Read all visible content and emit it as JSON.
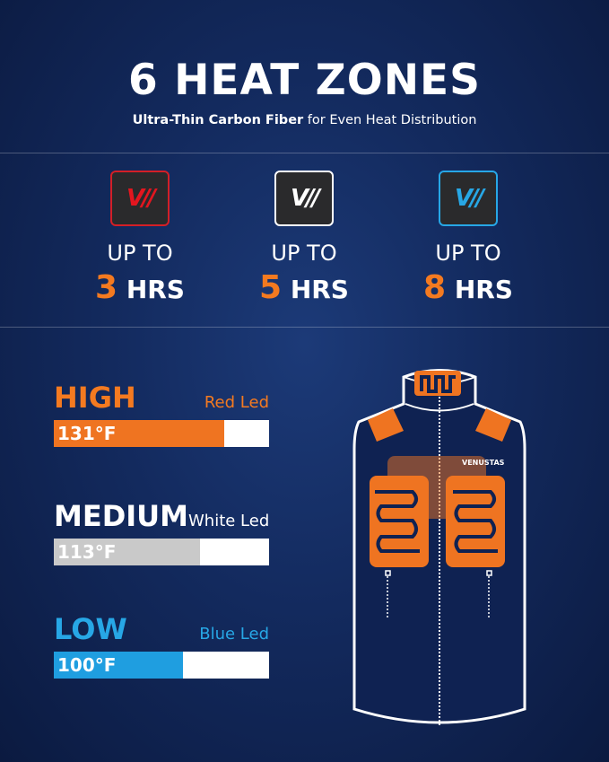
{
  "header": {
    "title": "6 HEAT ZONES",
    "subtitle_bold": "Ultra-Thin Carbon Fiber",
    "subtitle_rest": " for Even Heat Distribution"
  },
  "modes": [
    {
      "led_color": "#d41f26",
      "up_to": "UP TO",
      "hours": "3",
      "unit": "HRS",
      "icon": "venustas-logo-red"
    },
    {
      "led_color": "#ffffff",
      "up_to": "UP TO",
      "hours": "5",
      "unit": "HRS",
      "icon": "venustas-logo-white"
    },
    {
      "led_color": "#27a7e6",
      "up_to": "UP TO",
      "hours": "8",
      "unit": "HRS",
      "icon": "venustas-logo-blue"
    }
  ],
  "logo_text": "V//",
  "levels": [
    {
      "name": "HIGH",
      "name_color": "#f47a20",
      "led": "Red Led",
      "led_color": "#f47a20",
      "temp": "131°F",
      "fill_percent": 79,
      "fill_color": "#ef7421"
    },
    {
      "name": "MEDIUM",
      "name_color": "#ffffff",
      "led": "White Led",
      "led_color": "#ffffff",
      "temp": "113°F",
      "fill_percent": 68,
      "fill_color": "#c9c9c9"
    },
    {
      "name": "LOW",
      "name_color": "#27a7e6",
      "led": "Blue Led",
      "led_color": "#27a7e6",
      "temp": "100°F",
      "fill_percent": 60,
      "fill_color": "#1f9ee0"
    }
  ],
  "vest": {
    "brand": "VENUSTAS",
    "heating_color": "#ef7421"
  }
}
